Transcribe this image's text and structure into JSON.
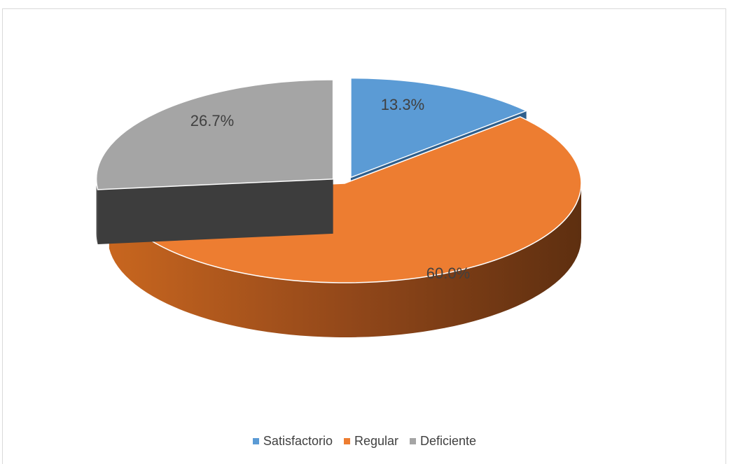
{
  "chart_data": {
    "type": "pie",
    "style": "3d-exploded",
    "categories": [
      "Satisfactorio",
      "Regular",
      "Deficiente"
    ],
    "values": [
      13.3,
      60.0,
      26.7
    ],
    "labels": [
      "13.3%",
      "60.0%",
      "26.7%"
    ],
    "colors": [
      "#5b9bd5",
      "#ed7d31",
      "#a5a5a5"
    ],
    "legend_position": "bottom"
  },
  "legend": [
    {
      "label": "Satisfactorio",
      "color": "#5b9bd5"
    },
    {
      "label": "Regular",
      "color": "#ed7d31"
    },
    {
      "label": "Deficiente",
      "color": "#a5a5a5"
    }
  ]
}
